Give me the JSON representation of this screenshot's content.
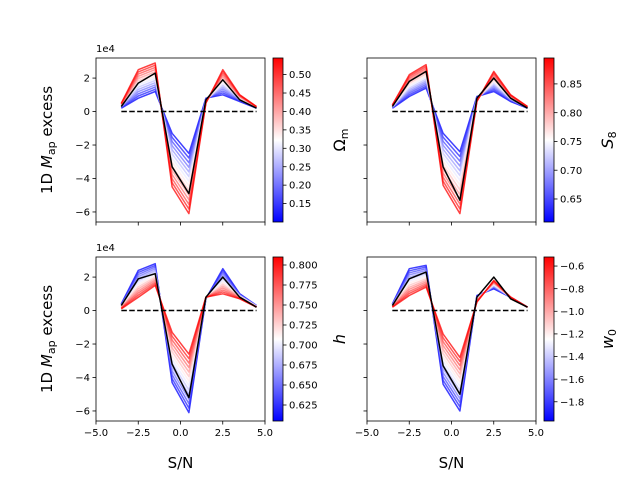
{
  "chart_data": {
    "type": "line",
    "shared_xlabel": "S/N",
    "xlim": [
      -5.0,
      5.0
    ],
    "ylim": [
      -6.6,
      3.2
    ],
    "y_scale_label": "1e4",
    "ylabel": "1D M_ap excess",
    "x_ticks": [
      -5.0,
      -2.5,
      0.0,
      2.5,
      5.0
    ],
    "x_tick_labels": [
      "−5.0",
      "−2.5",
      "0.0",
      "2.5",
      "5.0"
    ],
    "y_ticks": [
      2,
      0,
      -2,
      -4,
      -6
    ],
    "y_tick_labels": [
      "2",
      "0",
      "−2",
      "−4",
      "−6"
    ],
    "x": [
      -3.5,
      -2.5,
      -1.5,
      -0.5,
      0.5,
      1.5,
      2.5,
      3.5,
      4.5
    ],
    "zero_line": {
      "y": 0,
      "x_range": [
        -3.5,
        4.5
      ],
      "style": "dashed",
      "color": "#000000"
    },
    "panels": [
      {
        "id": "omega_m",
        "param": "Ω",
        "param_sub": "m",
        "colorbar": {
          "min": 0.1,
          "max": 0.545,
          "ticks": [
            0.5,
            0.45,
            0.4,
            0.35,
            0.3,
            0.25,
            0.2,
            0.15
          ],
          "tick_labels": [
            "0.50",
            "0.45",
            "0.40",
            "0.35",
            "0.30",
            "0.25",
            "0.20",
            "0.15"
          ]
        },
        "fiducial": [
          0.3,
          1.7,
          2.3,
          -3.3,
          -4.9,
          0.7,
          1.9,
          0.7,
          0.2
        ],
        "low_param": [
          0.2,
          0.8,
          1.2,
          -1.3,
          -2.5,
          0.8,
          1.0,
          0.6,
          0.2
        ],
        "high_param": [
          0.5,
          2.5,
          2.9,
          -4.5,
          -6.1,
          0.5,
          2.5,
          1.0,
          0.3
        ]
      },
      {
        "id": "s8",
        "param": "S",
        "param_sub": "8",
        "colorbar": {
          "min": 0.61,
          "max": 0.895,
          "ticks": [
            0.85,
            0.8,
            0.75,
            0.7,
            0.65
          ],
          "tick_labels": [
            "0.85",
            "0.80",
            "0.75",
            "0.70",
            "0.65"
          ]
        },
        "fiducial": [
          0.3,
          1.8,
          2.4,
          -3.3,
          -5.3,
          0.8,
          2.0,
          0.8,
          0.2
        ],
        "low_param": [
          0.2,
          0.9,
          1.4,
          -1.3,
          -2.4,
          0.9,
          1.2,
          0.6,
          0.2
        ],
        "high_param": [
          0.4,
          2.2,
          2.8,
          -4.4,
          -6.1,
          0.6,
          2.4,
          1.0,
          0.3
        ]
      },
      {
        "id": "h",
        "param": "h",
        "param_sub": "",
        "colorbar": {
          "min": 0.605,
          "max": 0.81,
          "ticks": [
            0.8,
            0.775,
            0.75,
            0.725,
            0.7,
            0.675,
            0.65,
            0.625
          ],
          "tick_labels": [
            "0.800",
            "0.775",
            "0.750",
            "0.725",
            "0.700",
            "0.675",
            "0.650",
            "0.625"
          ]
        },
        "fiducial": [
          0.3,
          1.9,
          2.2,
          -3.2,
          -5.2,
          0.8,
          2.0,
          0.8,
          0.2
        ],
        "low_param": [
          0.4,
          2.4,
          2.8,
          -4.3,
          -6.1,
          0.7,
          2.5,
          1.0,
          0.3
        ],
        "high_param": [
          0.1,
          0.8,
          1.5,
          -1.3,
          -2.6,
          0.8,
          1.0,
          0.7,
          0.2
        ]
      },
      {
        "id": "w0",
        "param": "w",
        "param_sub": "0",
        "colorbar": {
          "min": -1.97,
          "max": -0.52,
          "ticks": [
            -0.6,
            -0.8,
            -1.0,
            -1.2,
            -1.4,
            -1.6,
            -1.8
          ],
          "tick_labels": [
            "−0.6",
            "−0.8",
            "−1.0",
            "−1.2",
            "−1.4",
            "−1.6",
            "−1.8"
          ]
        },
        "fiducial": [
          0.3,
          1.9,
          2.3,
          -3.3,
          -5.0,
          0.8,
          2.0,
          0.7,
          0.2
        ],
        "low_param": [
          0.4,
          2.5,
          2.7,
          -4.4,
          -6.0,
          0.9,
          1.3,
          0.8,
          0.2
        ],
        "high_param": [
          0.2,
          0.9,
          1.4,
          -1.4,
          -2.8,
          0.5,
          1.8,
          0.8,
          0.2
        ]
      }
    ]
  }
}
